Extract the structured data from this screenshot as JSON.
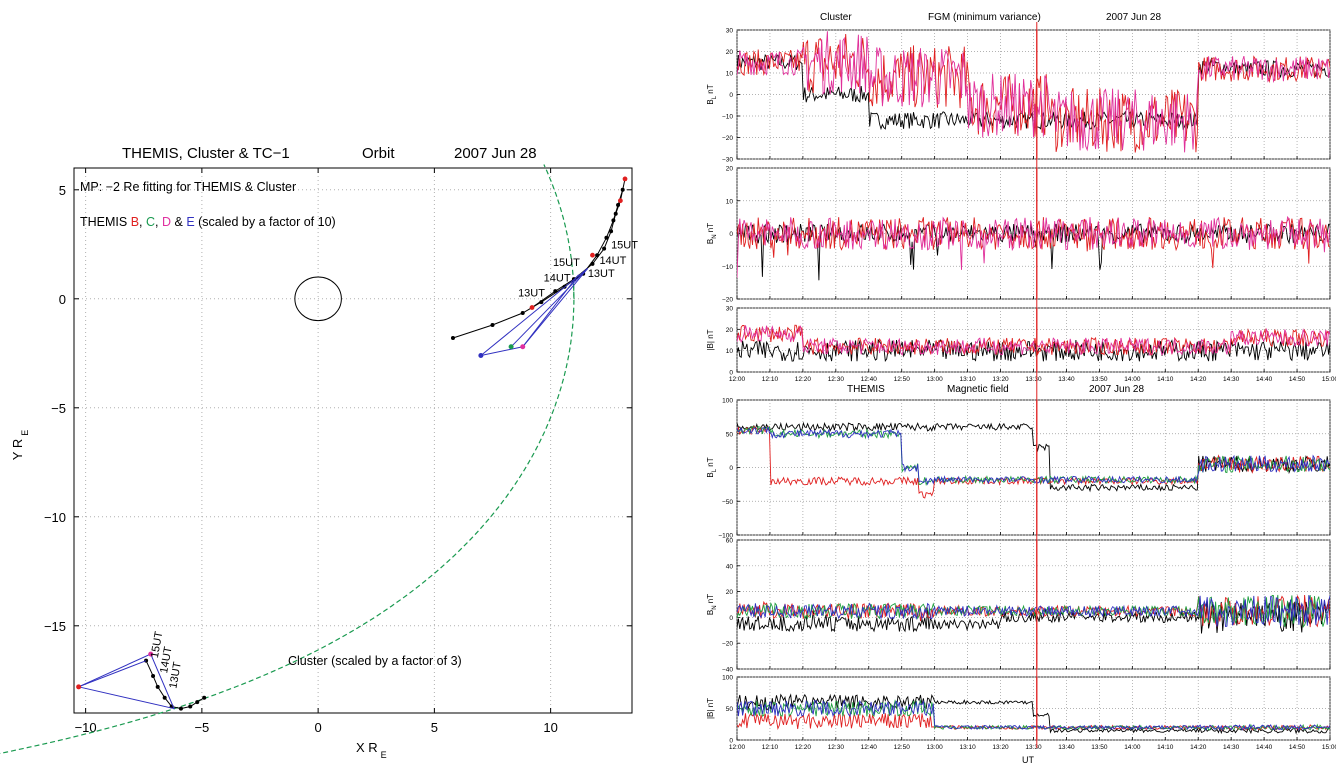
{
  "orbit": {
    "title_parts": [
      "THEMIS, Cluster & TC−1",
      "Orbit",
      "2007  Jun  28"
    ],
    "mp_note": "MP: −2 Re fitting for THEMIS & Cluster",
    "themis_label": {
      "prefix": "THEMIS ",
      "b": "B",
      "sep1": ", ",
      "c": "C",
      "sep2": ", ",
      "d": "D",
      "sep3": " & ",
      "e": "E",
      "suffix": " (scaled by a factor of 10)"
    },
    "cluster_label": "Cluster (scaled by a factor of 3)",
    "xlabel": "X R",
    "ylabel": "Y R",
    "unit_sub": "E",
    "chart_data": {
      "type": "scatter",
      "xlim": [
        -10.5,
        13.5
      ],
      "ylim": [
        -19,
        6
      ],
      "xticks": [
        -10,
        -5,
        0,
        5,
        10
      ],
      "yticks": [
        5,
        0,
        -5,
        -10,
        -15
      ],
      "grid": true,
      "earth": {
        "x": 0,
        "y": 0,
        "rx": 1,
        "ry": 1
      },
      "magnetopause_color": "#1a9a50",
      "themis_track": [
        [
          5.8,
          -1.8
        ],
        [
          7.5,
          -1.2
        ],
        [
          8.8,
          -0.65
        ],
        [
          9.6,
          -0.15
        ],
        [
          10.6,
          0.55
        ],
        [
          11.4,
          1.15
        ],
        [
          12.0,
          2.0
        ],
        [
          12.4,
          2.8
        ],
        [
          12.7,
          3.6
        ],
        [
          12.9,
          4.3
        ],
        [
          13.1,
          5.0
        ]
      ],
      "themis_track_upper": [
        [
          9.2,
          -0.4
        ],
        [
          10.2,
          0.35
        ],
        [
          11.0,
          0.9
        ],
        [
          11.8,
          1.6
        ],
        [
          12.3,
          2.3
        ],
        [
          12.6,
          3.1
        ],
        [
          12.8,
          3.9
        ],
        [
          13.0,
          4.5
        ],
        [
          13.2,
          5.5
        ]
      ],
      "themis_red_points": [
        [
          9.2,
          -0.4
        ],
        [
          11.8,
          2.0
        ],
        [
          13.0,
          4.5
        ],
        [
          13.2,
          5.5
        ]
      ],
      "themis_tetra": {
        "B": [
          8.8,
          -2.2
        ],
        "C": [
          8.3,
          -2.2
        ],
        "D": [
          8.8,
          -2.2
        ],
        "E": [
          7.0,
          -2.6
        ],
        "apex": [
          11.6,
          1.4
        ]
      },
      "themis_time_labels": [
        {
          "text": "13UT",
          "x": 8.6,
          "y": 0.1
        },
        {
          "text": "14UT",
          "x": 9.7,
          "y": 0.8
        },
        {
          "text": "15UT",
          "x": 10.1,
          "y": 1.5
        },
        {
          "text": "13UT",
          "x": 11.6,
          "y": 1.0
        },
        {
          "text": "14UT",
          "x": 12.1,
          "y": 1.6
        },
        {
          "text": "15UT",
          "x": 12.6,
          "y": 2.3
        }
      ],
      "cluster_track": [
        [
          -7.4,
          -16.6
        ],
        [
          -7.1,
          -17.3
        ],
        [
          -6.9,
          -17.8
        ],
        [
          -6.6,
          -18.3
        ],
        [
          -6.3,
          -18.7
        ],
        [
          -5.9,
          -18.8
        ],
        [
          -5.5,
          -18.7
        ],
        [
          -5.2,
          -18.5
        ],
        [
          -4.9,
          -18.3
        ]
      ],
      "cluster_points": {
        "red": [
          -10.3,
          -17.8
        ],
        "magenta": [
          -7.2,
          -16.3
        ],
        "apex": [
          -6.2,
          -18.8
        ]
      },
      "cluster_time_labels": [
        {
          "text": "15UT",
          "x": -6.9,
          "y": -16.5
        },
        {
          "text": "14UT",
          "x": -6.5,
          "y": -17.2
        },
        {
          "text": "13UT",
          "x": -6.1,
          "y": -17.9
        }
      ]
    }
  },
  "cluster_panel": {
    "title_parts": [
      "Cluster",
      "FGM  (minimum variance)",
      "2007  Jun  28"
    ],
    "rows": [
      {
        "ylabel": "B",
        "sub": "L",
        "unit": " nT",
        "ylim": [
          -30,
          30
        ],
        "yticks": [
          30,
          20,
          10,
          0,
          -10,
          -20,
          -30
        ]
      },
      {
        "ylabel": "B",
        "sub": "N",
        "unit": " nT",
        "ylim": [
          -20,
          20
        ],
        "yticks": [
          20,
          10,
          0,
          -10,
          -20
        ]
      },
      {
        "ylabel": "|B|",
        "sub": "",
        "unit": " nT",
        "ylim": [
          0,
          30
        ],
        "yticks": [
          30,
          20,
          10,
          0
        ]
      }
    ],
    "colors": [
      "#000000",
      "#e02020",
      "#e0309a"
    ]
  },
  "themis_panel": {
    "title_parts": [
      "THEMIS",
      "Magnetic  field",
      "2007  Jun  28"
    ],
    "rows": [
      {
        "ylabel": "B",
        "sub": "L",
        "unit": " nT",
        "ylim": [
          -100,
          100
        ],
        "yticks": [
          100,
          50,
          0,
          -50,
          -100
        ]
      },
      {
        "ylabel": "B",
        "sub": "N",
        "unit": " nT",
        "ylim": [
          -40,
          60
        ],
        "yticks": [
          60,
          40,
          20,
          0,
          -20,
          -40
        ]
      },
      {
        "ylabel": "|B|",
        "sub": "",
        "unit": " nT",
        "ylim": [
          0,
          100
        ],
        "yticks": [
          100,
          50,
          0
        ]
      }
    ],
    "colors": [
      "#000000",
      "#e02020",
      "#20a040",
      "#3030c0"
    ],
    "xlabel": "UT"
  },
  "time_axis": {
    "labels": [
      "12:00",
      "12:10",
      "12:20",
      "12:30",
      "12:40",
      "12:50",
      "13:00",
      "13:10",
      "13:20",
      "13:30",
      "13:40",
      "13:50",
      "14:00",
      "14:10",
      "14:20",
      "14:30",
      "14:40",
      "14:50",
      "15:00"
    ],
    "marker": "13:31",
    "marker_color": "#e02020"
  }
}
